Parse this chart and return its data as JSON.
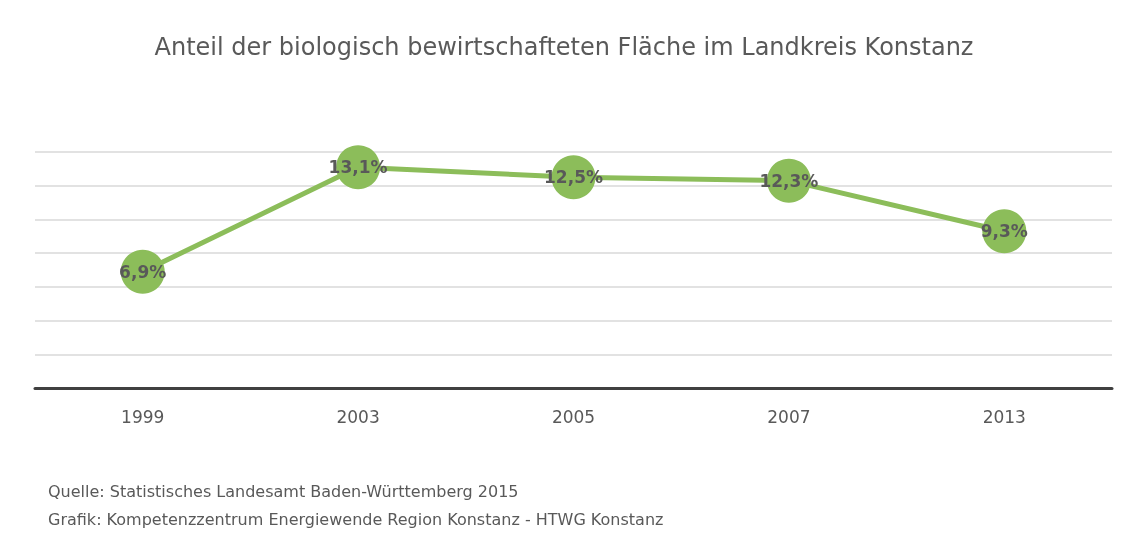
{
  "chart_data": {
    "type": "line",
    "title": "Anteil der biologisch bewirtschafteten Fläche im Landkreis Konstanz",
    "categories": [
      "1999",
      "2003",
      "2005",
      "2007",
      "2013"
    ],
    "series": [
      {
        "color": "#8cbd5a",
        "values": [
          6.9,
          13.1,
          12.5,
          12.3,
          9.3
        ],
        "value_labels": [
          "6,9%",
          "13,1%",
          "12,5%",
          "12,3%",
          "9,3%"
        ]
      }
    ],
    "ylim": [
      0,
      14
    ],
    "yticks": [
      {
        "value": 0,
        "label": null
      },
      {
        "value": 2,
        "label": null
      },
      {
        "value": 4,
        "label": null
      },
      {
        "value": 6,
        "label": null
      },
      {
        "value": 8,
        "label": null
      },
      {
        "value": 10,
        "label": null
      },
      {
        "value": 12,
        "label": null
      },
      {
        "value": 14,
        "label": null
      }
    ],
    "tick_labels": "x",
    "grid": "y",
    "marker": "circle",
    "line_style": "solid",
    "annotations": [
      "Quelle: Statistisches Landesamt Baden-Württemberg 2015",
      "Grafik: Kompetenzzentrum Energiewende Region Konstanz - HTWG Konstanz"
    ]
  }
}
